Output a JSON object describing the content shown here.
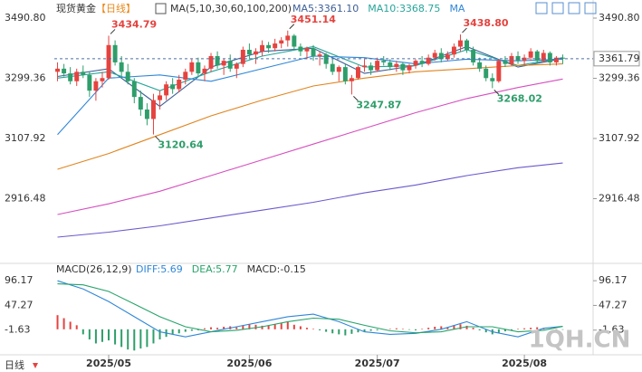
{
  "chart_data": [
    {
      "type": "candlestick",
      "title": "现货黄金",
      "period": "【日线】",
      "indicator": "MA(5,10,30,60,100,200)",
      "legend": [
        "MA5:3361.10",
        "MA10:3368.75",
        "MA"
      ],
      "up_color": "#e5433f",
      "down_color": "#2e9e6a",
      "open": [
        3320,
        3330,
        3315,
        3290,
        3320,
        3310,
        3260,
        3290,
        3300,
        3405,
        3350,
        3320,
        3290,
        3240,
        3200,
        3170,
        3230,
        3245,
        3280,
        3265,
        3295,
        3320,
        3350,
        3315,
        3330,
        3370,
        3340,
        3355,
        3330,
        3345,
        3390,
        3375,
        3385,
        3405,
        3395,
        3410,
        3420,
        3435,
        3400,
        3385,
        3395,
        3370,
        3375,
        3345,
        3320,
        3335,
        3290,
        3300,
        3335,
        3340,
        3325,
        3355,
        3350,
        3335,
        3345,
        3325,
        3340,
        3355,
        3345,
        3365,
        3380,
        3360,
        3375,
        3400,
        3420,
        3390,
        3350,
        3330,
        3300,
        3290,
        3355,
        3345,
        3370,
        3355,
        3365,
        3385,
        3355,
        3380,
        3350,
        3365
      ],
      "high": [
        3350,
        3345,
        3335,
        3330,
        3340,
        3320,
        3300,
        3320,
        3434.79,
        3420,
        3370,
        3345,
        3300,
        3260,
        3220,
        3250,
        3260,
        3290,
        3300,
        3310,
        3330,
        3360,
        3365,
        3340,
        3380,
        3385,
        3360,
        3375,
        3350,
        3400,
        3410,
        3395,
        3420,
        3415,
        3425,
        3430,
        3451.14,
        3440,
        3410,
        3400,
        3405,
        3385,
        3380,
        3360,
        3340,
        3345,
        3310,
        3340,
        3360,
        3350,
        3365,
        3370,
        3360,
        3355,
        3350,
        3345,
        3360,
        3370,
        3375,
        3390,
        3395,
        3385,
        3410,
        3438.8,
        3425,
        3400,
        3365,
        3340,
        3315,
        3360,
        3370,
        3380,
        3385,
        3375,
        3395,
        3390,
        3390,
        3385,
        3370,
        3375
      ],
      "low": [
        3290,
        3305,
        3280,
        3275,
        3300,
        3240,
        3228,
        3270,
        3295,
        3340,
        3300,
        3280,
        3220,
        3180,
        3150,
        3120.64,
        3200,
        3230,
        3250,
        3255,
        3280,
        3310,
        3305,
        3290,
        3320,
        3330,
        3310,
        3320,
        3300,
        3335,
        3360,
        3345,
        3370,
        3380,
        3385,
        3395,
        3400,
        3390,
        3370,
        3360,
        3355,
        3340,
        3330,
        3310,
        3290,
        3280,
        3247.87,
        3295,
        3320,
        3310,
        3320,
        3340,
        3325,
        3320,
        3310,
        3315,
        3330,
        3335,
        3340,
        3355,
        3350,
        3355,
        3365,
        3385,
        3380,
        3340,
        3320,
        3290,
        3268.02,
        3285,
        3335,
        3340,
        3345,
        3340,
        3355,
        3345,
        3350,
        3340,
        3340,
        3345
      ],
      "close": [
        3330,
        3315,
        3290,
        3320,
        3310,
        3260,
        3290,
        3300,
        3405,
        3350,
        3320,
        3290,
        3240,
        3200,
        3170,
        3230,
        3245,
        3280,
        3265,
        3295,
        3320,
        3350,
        3315,
        3330,
        3370,
        3340,
        3355,
        3330,
        3345,
        3390,
        3375,
        3385,
        3405,
        3395,
        3410,
        3420,
        3435,
        3400,
        3385,
        3395,
        3370,
        3375,
        3345,
        3320,
        3335,
        3290,
        3300,
        3335,
        3340,
        3325,
        3355,
        3350,
        3335,
        3345,
        3325,
        3340,
        3355,
        3345,
        3365,
        3380,
        3360,
        3375,
        3400,
        3420,
        3390,
        3350,
        3330,
        3300,
        3290,
        3355,
        3345,
        3370,
        3355,
        3365,
        3385,
        3355,
        3380,
        3350,
        3365,
        3361.79
      ],
      "high_labels": [
        null,
        null,
        null,
        null,
        null,
        null,
        null,
        null,
        "3434.79",
        null,
        null,
        null,
        null,
        null,
        null,
        null,
        null,
        null,
        null,
        null,
        null,
        null,
        null,
        null,
        null,
        null,
        null,
        null,
        null,
        null,
        null,
        null,
        null,
        null,
        null,
        null,
        "3451.14",
        null,
        null,
        null,
        null,
        null,
        null,
        null,
        null,
        null,
        null,
        null,
        null,
        null,
        null,
        null,
        null,
        null,
        null,
        null,
        null,
        null,
        null,
        null,
        null,
        null,
        null,
        "3438.80",
        null,
        null,
        null,
        null,
        null,
        null,
        null,
        null,
        null,
        null,
        null,
        null,
        null,
        null,
        null,
        null
      ],
      "low_labels": [
        null,
        null,
        null,
        null,
        null,
        null,
        null,
        null,
        null,
        null,
        null,
        null,
        null,
        null,
        null,
        "3120.64",
        null,
        null,
        null,
        null,
        null,
        null,
        null,
        null,
        null,
        null,
        null,
        null,
        null,
        null,
        null,
        null,
        null,
        null,
        null,
        null,
        null,
        null,
        null,
        null,
        null,
        null,
        null,
        null,
        null,
        null,
        "3247.87",
        null,
        null,
        null,
        null,
        null,
        null,
        null,
        null,
        null,
        null,
        null,
        null,
        null,
        null,
        null,
        null,
        null,
        null,
        null,
        null,
        null,
        "3268.02",
        null,
        null,
        null,
        null,
        null,
        null,
        null,
        null,
        null,
        null,
        null
      ],
      "lines": [
        {
          "color": "#3d5f96",
          "x": [
            0,
            8,
            16,
            24,
            32,
            40,
            48,
            56,
            64,
            72,
            79
          ],
          "values": [
            3305,
            3330,
            3210,
            3335,
            3385,
            3395,
            3315,
            3340,
            3400,
            3335,
            3362
          ]
        },
        {
          "color": "#27a59a",
          "x": [
            0,
            8,
            16,
            24,
            32,
            40,
            48,
            56,
            64,
            72,
            79
          ],
          "values": [
            3300,
            3320,
            3260,
            3320,
            3370,
            3400,
            3335,
            3340,
            3390,
            3340,
            3365
          ]
        },
        {
          "color": "#2f86d8",
          "x": [
            0,
            8,
            16,
            24,
            32,
            40,
            48,
            56,
            64,
            72,
            79
          ],
          "values": [
            3120,
            3300,
            3310,
            3290,
            3330,
            3370,
            3365,
            3345,
            3360,
            3355,
            3360
          ]
        },
        {
          "color": "#e0841e",
          "x": [
            0,
            8,
            16,
            24,
            32,
            40,
            48,
            56,
            64,
            72,
            79
          ],
          "values": [
            3010,
            3060,
            3120,
            3180,
            3230,
            3275,
            3300,
            3320,
            3330,
            3340,
            3345
          ]
        },
        {
          "color": "#d64fbf",
          "x": [
            0,
            8,
            16,
            24,
            32,
            40,
            48,
            56,
            64,
            72,
            79
          ],
          "values": [
            2866,
            2900,
            2940,
            2990,
            3040,
            3090,
            3140,
            3190,
            3235,
            3270,
            3297
          ]
        },
        {
          "color": "#6a5acd",
          "x": [
            0,
            8,
            16,
            24,
            32,
            40,
            48,
            56,
            64,
            72,
            79
          ],
          "values": [
            2794,
            2810,
            2830,
            2855,
            2880,
            2905,
            2935,
            2960,
            2990,
            3015,
            3030
          ]
        }
      ],
      "xlim": [
        -0.5,
        79.5
      ],
      "ylim": [
        2713.5,
        3519.6
      ],
      "yticks": [
        {
          "value": 3490.8,
          "label": "3490.80"
        },
        3299.36,
        3107.92,
        2916.48
      ]
    },
    {
      "type": "macd",
      "title": "MACD(26,12,9)",
      "legend": [
        "DIFF:5.69",
        "DEA:5.77",
        "MACD:-0.15"
      ],
      "up_color": "#e5433f",
      "down_color": "#2e9e6a",
      "histogram": [
        28,
        22,
        15,
        8,
        -10,
        -20,
        -28,
        -25,
        -22,
        -30,
        -35,
        -40,
        -42,
        -38,
        -35,
        -28,
        -20,
        -15,
        -10,
        -8,
        -5,
        -3,
        -2,
        2,
        4,
        3,
        5,
        6,
        4,
        8,
        10,
        9,
        7,
        8,
        10,
        12,
        14,
        9,
        6,
        3,
        1,
        -2,
        -5,
        -8,
        -10,
        -12,
        -9,
        -6,
        -4,
        -3,
        -2,
        -1,
        1,
        2,
        1,
        -1,
        -2,
        1,
        3,
        5,
        6,
        4,
        8,
        10,
        7,
        3,
        -2,
        -6,
        -10,
        -7,
        -4,
        -2,
        1,
        2,
        3,
        4,
        2,
        1,
        0,
        -0.15
      ],
      "lines": [
        {
          "color": "#2f86d8",
          "x": [
            0,
            4,
            8,
            12,
            16,
            20,
            24,
            28,
            32,
            36,
            40,
            44,
            48,
            52,
            56,
            60,
            64,
            68,
            72,
            76,
            79
          ],
          "values": [
            96,
            80,
            55,
            25,
            -5,
            -15,
            -5,
            5,
            15,
            25,
            30,
            15,
            -5,
            -10,
            -8,
            0,
            15,
            -5,
            -15,
            2,
            5.69
          ]
        },
        {
          "color": "#27a36a",
          "x": [
            0,
            4,
            8,
            12,
            16,
            20,
            24,
            28,
            32,
            36,
            40,
            44,
            48,
            52,
            56,
            60,
            64,
            68,
            72,
            76,
            79
          ],
          "values": [
            90,
            88,
            75,
            50,
            25,
            5,
            -5,
            -2,
            5,
            15,
            22,
            20,
            8,
            -3,
            -7,
            -5,
            5,
            5,
            -5,
            -2,
            5.77
          ]
        }
      ],
      "xlim": [
        -0.5,
        79.5
      ],
      "xticks": [
        {
          "value": 8,
          "label": "2025/05"
        },
        {
          "value": 30,
          "label": "2025/06"
        },
        {
          "value": 50,
          "label": "2025/07"
        },
        {
          "value": 73,
          "label": "2025/08"
        }
      ],
      "ylim": [
        -50.5,
        123.3
      ],
      "yticks": [
        96.17,
        47.27,
        -1.63
      ]
    }
  ],
  "footer_period": "日线",
  "watermark": "1QH.CN"
}
